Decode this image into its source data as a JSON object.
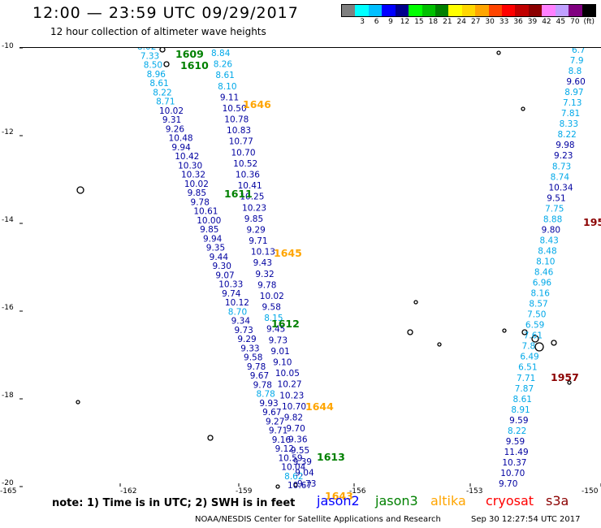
{
  "header": {
    "title": "12:00 — 23:59 UTC 09/29/2017",
    "subtitle": "12 hour collection of altimeter wave heights"
  },
  "legend": {
    "colors": [
      "#7f7f7f",
      "#00ffff",
      "#00bfff",
      "#0000ff",
      "#00008b",
      "#00ff00",
      "#00c000",
      "#008000",
      "#ffff00",
      "#ffd700",
      "#ffa500",
      "#ff4500",
      "#ff0000",
      "#c00000",
      "#8b0000",
      "#ff80ff",
      "#c0a0ff",
      "#800080",
      "#000000"
    ],
    "labels": [
      "3",
      "6",
      "9",
      "12",
      "15",
      "18",
      "21",
      "24",
      "27",
      "30",
      "33",
      "36",
      "39",
      "42",
      "45",
      "70",
      "(ft)"
    ]
  },
  "axes": {
    "y_ticks": [
      "-10",
      "-12",
      "-14",
      "-16",
      "-18",
      "-20"
    ],
    "x_ticks": [
      "-165",
      "-162",
      "-159",
      "-156",
      "-153",
      "-150"
    ]
  },
  "pass_labels": [
    {
      "text": "1609",
      "color": "#008000"
    },
    {
      "text": "1610",
      "color": "#008000"
    },
    {
      "text": "1646",
      "color": "#ffa500"
    },
    {
      "text": "1611",
      "color": "#008000"
    },
    {
      "text": "1645",
      "color": "#ffa500"
    },
    {
      "text": "1612",
      "color": "#008000"
    },
    {
      "text": "1644",
      "color": "#ffa500"
    },
    {
      "text": "1613",
      "color": "#008000"
    },
    {
      "text": "1643",
      "color": "#ffa500"
    },
    {
      "text": "1957",
      "color": "#8b0000"
    },
    {
      "text": "195",
      "color": "#8b0000"
    }
  ],
  "tracks": {
    "track_a": [
      "8.02",
      "7.33",
      "8.50",
      "8.96",
      "8.61",
      "8.22",
      "8.71",
      "10.02",
      "9.31",
      "9.26",
      "10.48",
      "9.94",
      "10.42",
      "10.30",
      "10.32",
      "10.02",
      "9.85",
      "9.78",
      "10.61",
      "10.00",
      "9.85",
      "9.94",
      "9.35",
      "9.44",
      "9.30",
      "9.07",
      "10.33",
      "9.74",
      "10.12",
      "8.70",
      "9.34",
      "9.73",
      "9.29",
      "9.33",
      "9.58",
      "9.78",
      "9.67",
      "9.78",
      "8.78",
      "9.93",
      "9.67",
      "9.27",
      "9.71",
      "9.16",
      "9.12",
      "10.59",
      "10.04",
      "8.62",
      "10.67"
    ],
    "track_b": [
      "8.84",
      "8.26",
      "8.61",
      "8.10",
      "9.11",
      "10.50",
      "10.78",
      "10.83",
      "10.77",
      "10.70",
      "10.52",
      "10.36",
      "10.41",
      "10.25",
      "10.23",
      "9.85",
      "9.29",
      "9.71",
      "10.13",
      "9.43",
      "9.32",
      "9.78",
      "10.02",
      "9.58",
      "8.15",
      "9.45",
      "9.73",
      "9.01",
      "9.10",
      "10.05",
      "10.27",
      "10.23",
      "10.70",
      "9.82",
      "9.70",
      "9.36",
      "9.55",
      "9.39",
      "9.04",
      "9.73"
    ],
    "track_c": [
      "6.7",
      "7.9",
      "8.8",
      "9.60",
      "8.97",
      "7.13",
      "7.81",
      "8.33",
      "8.22",
      "9.98",
      "9.23",
      "8.73",
      "8.74",
      "10.34",
      "9.51",
      "7.75",
      "8.88",
      "9.80",
      "8.43",
      "8.48",
      "8.10",
      "8.46",
      "6.96",
      "8.16",
      "8.57",
      "7.50",
      "6.59",
      "7.61",
      "7.8",
      "6.49",
      "6.51",
      "7.71",
      "7.87",
      "8.61",
      "8.91",
      "9.59",
      "8.22",
      "9.59",
      "11.49",
      "10.37",
      "10.70",
      "9.70"
    ]
  },
  "footer": {
    "note": "note: 1) Time is in UTC; 2) SWH is in feet",
    "satellites": [
      {
        "name": "jason2",
        "color": "#0000ff"
      },
      {
        "name": "jason3",
        "color": "#008000"
      },
      {
        "name": "altika",
        "color": "#ffa500"
      },
      {
        "name": "cryosat",
        "color": "#ff0000"
      },
      {
        "name": "s3a",
        "color": "#8b0000"
      }
    ],
    "credit": "NOAA/NESDIS Center for Satellite Applications and Research",
    "timestamp": "Sep 30 12:27:54 UTC 2017"
  }
}
